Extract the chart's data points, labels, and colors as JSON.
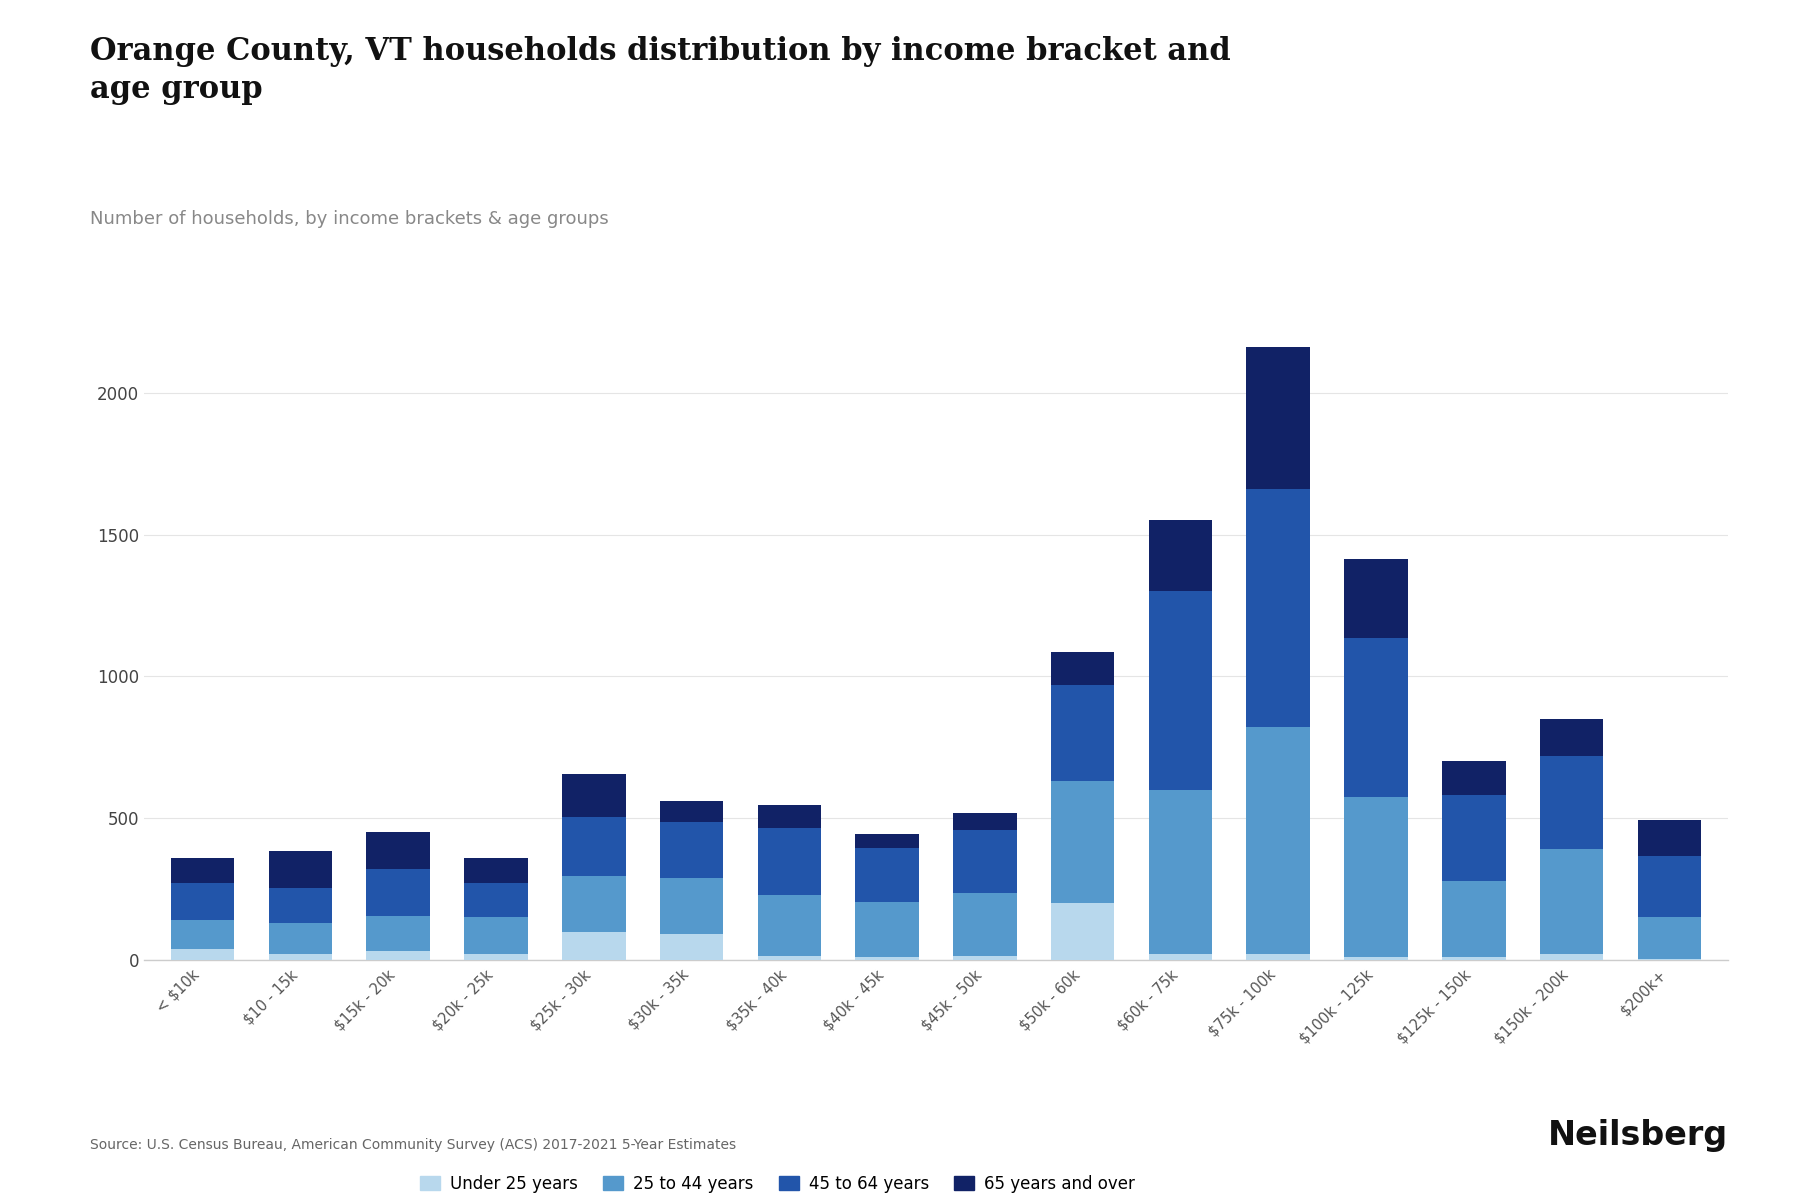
{
  "title": "Orange County, VT households distribution by income bracket and\nage group",
  "subtitle": "Number of households, by income brackets & age groups",
  "source": "Source: U.S. Census Bureau, American Community Survey (ACS) 2017-2021 5-Year Estimates",
  "categories": [
    "< $10k",
    "$10 - 15k",
    "$15k - 20k",
    "$20k - 25k",
    "$25k - 30k",
    "$30k - 35k",
    "$35k - 40k",
    "$40k - 45k",
    "$45k - 50k",
    "$50k - 60k",
    "$60k - 75k",
    "$75k - 100k",
    "$100k - 125k",
    "$125k - 150k",
    "$150k - 200k",
    "$200k+"
  ],
  "age_groups": [
    "Under 25 years",
    "25 to 44 years",
    "45 to 64 years",
    "65 years and over"
  ],
  "colors": [
    "#b8d8ed",
    "#5599cc",
    "#2255aa",
    "#112266"
  ],
  "data": {
    "Under 25 years": [
      40,
      20,
      30,
      20,
      100,
      90,
      15,
      10,
      15,
      200,
      20,
      20,
      10,
      10,
      20,
      5
    ],
    "25 to 44 years": [
      100,
      110,
      125,
      130,
      195,
      200,
      215,
      195,
      220,
      430,
      580,
      800,
      565,
      270,
      370,
      145
    ],
    "45 to 64 years": [
      130,
      125,
      165,
      120,
      210,
      195,
      235,
      190,
      225,
      340,
      700,
      840,
      560,
      300,
      330,
      215
    ],
    "65 years and over": [
      90,
      130,
      130,
      90,
      150,
      75,
      80,
      50,
      60,
      115,
      250,
      500,
      280,
      120,
      130,
      130
    ]
  },
  "ylim": [
    0,
    2200
  ],
  "yticks": [
    0,
    500,
    1000,
    1500,
    2000
  ],
  "background_color": "#ffffff",
  "grid_color": "#e5e5e5",
  "bar_width": 0.65
}
